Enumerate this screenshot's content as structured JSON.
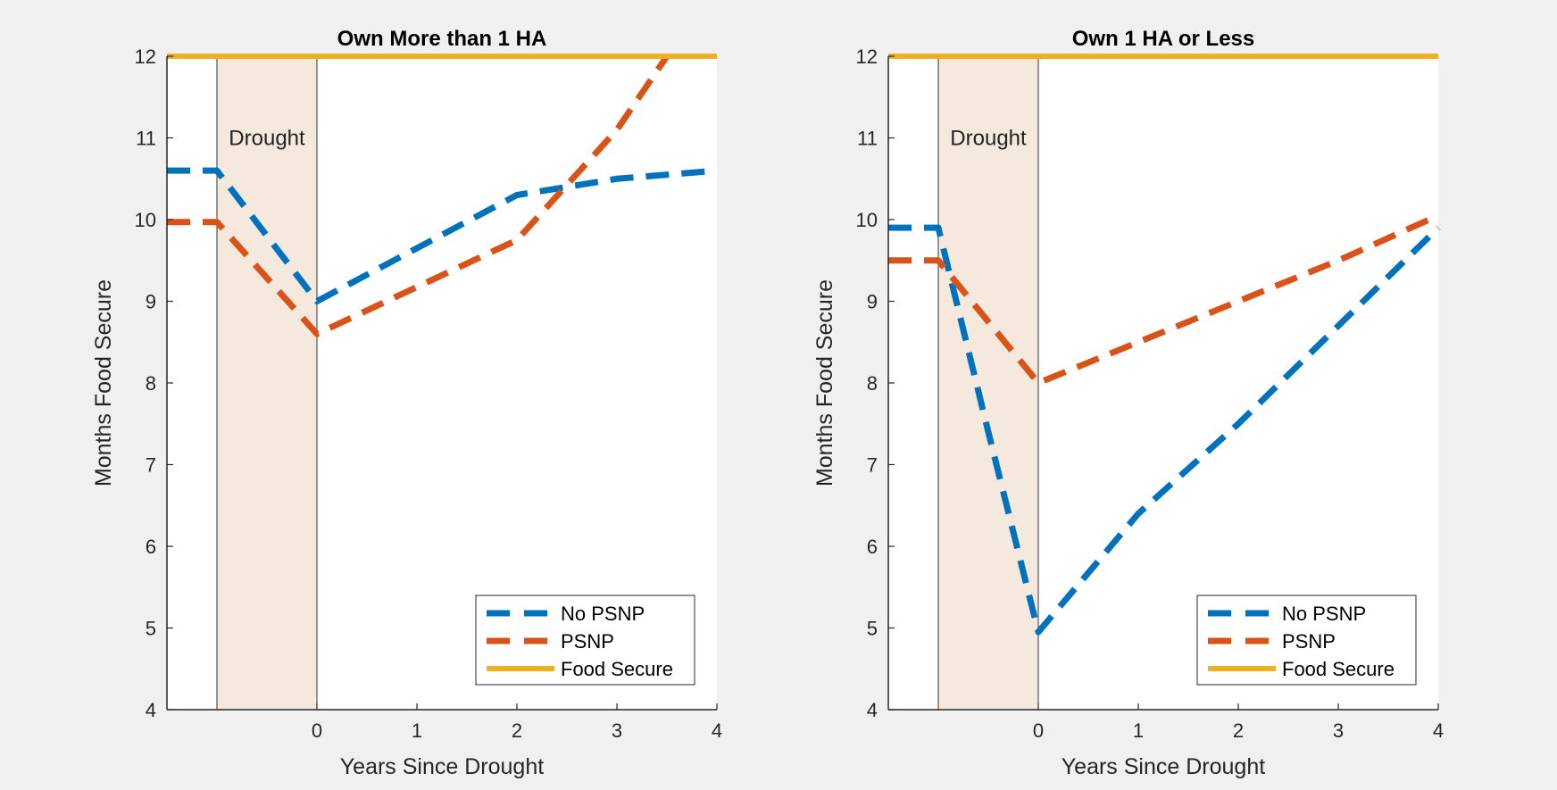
{
  "colors": {
    "no_psnp": "#0072BD",
    "psnp": "#D95319",
    "food_secure": "#EDB120",
    "drought_fill": "#f5e8dc",
    "background": "#f0f0f0",
    "axes_bg": "#ffffff"
  },
  "chart_data": [
    {
      "type": "line",
      "title": "Own More than 1 HA",
      "xlabel": "Years Since Drought",
      "ylabel": "Months Food Secure",
      "xlim": [
        -1.5,
        4
      ],
      "ylim": [
        4,
        12
      ],
      "xticks": [
        0,
        1,
        2,
        3,
        4
      ],
      "yticks": [
        4,
        5,
        6,
        7,
        8,
        9,
        10,
        11,
        12
      ],
      "annotation": {
        "text": "Drought",
        "x_range": [
          -1,
          0
        ]
      },
      "legend_position": "bottom-right",
      "series": [
        {
          "name": "No PSNP",
          "key": "no_psnp",
          "style": "dashed",
          "points": [
            [
              -1.5,
              10.6
            ],
            [
              -1,
              10.6
            ],
            [
              0,
              9.0
            ],
            [
              2,
              10.3
            ],
            [
              3,
              10.5
            ],
            [
              4,
              10.6
            ]
          ]
        },
        {
          "name": "PSNP",
          "key": "psnp",
          "style": "dashed",
          "points": [
            [
              -1.5,
              9.97
            ],
            [
              -1,
              9.97
            ],
            [
              0,
              8.6
            ],
            [
              2,
              9.75
            ],
            [
              3,
              11.1
            ],
            [
              3.5,
              12
            ]
          ]
        },
        {
          "name": "Food Secure",
          "key": "food_secure",
          "style": "solid",
          "points": [
            [
              -1.5,
              12
            ],
            [
              4,
              12
            ]
          ]
        }
      ]
    },
    {
      "type": "line",
      "title": "Own 1 HA or Less",
      "xlabel": "Years Since Drought",
      "ylabel": "Months Food Secure",
      "xlim": [
        -1.5,
        4
      ],
      "ylim": [
        4,
        12
      ],
      "xticks": [
        0,
        1,
        2,
        3,
        4
      ],
      "yticks": [
        4,
        5,
        6,
        7,
        8,
        9,
        10,
        11,
        12
      ],
      "annotation": {
        "text": "Drought",
        "x_range": [
          -1,
          0
        ]
      },
      "legend_position": "bottom-right",
      "series": [
        {
          "name": "No PSNP",
          "key": "no_psnp",
          "style": "dashed",
          "points": [
            [
              -1.5,
              9.9
            ],
            [
              -1,
              9.9
            ],
            [
              -0.5,
              7.4
            ],
            [
              0,
              4.95
            ],
            [
              1,
              6.4
            ],
            [
              2,
              7.5
            ],
            [
              3,
              8.7
            ],
            [
              4,
              9.9
            ]
          ]
        },
        {
          "name": "PSNP",
          "key": "psnp",
          "style": "dashed",
          "points": [
            [
              -1.5,
              9.5
            ],
            [
              -1,
              9.5
            ],
            [
              0,
              8.0
            ],
            [
              2,
              9.0
            ],
            [
              3,
              9.5
            ],
            [
              4,
              10.05
            ]
          ]
        },
        {
          "name": "Food Secure",
          "key": "food_secure",
          "style": "solid",
          "points": [
            [
              -1.5,
              12
            ],
            [
              4,
              12
            ]
          ]
        }
      ]
    }
  ]
}
